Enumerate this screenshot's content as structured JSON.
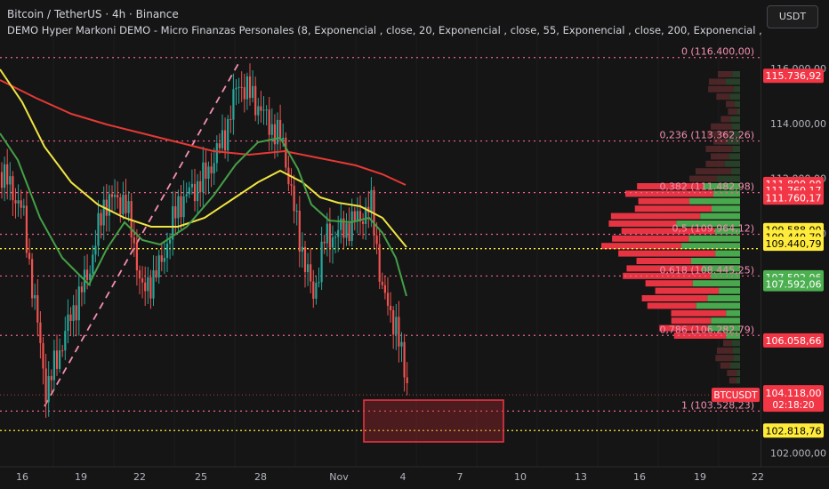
{
  "header": {
    "symbol_line": "Bitcoin / TetherUS · 4h · Binance",
    "indicator_line": "DEMO Hyper Markoni DEMO - Micro Finanzas Personales (8, Exponencial , close, 20, Exponencial , close, 55, Exponencial , close, 200, Exponencial , close,"
  },
  "currency_button": "USDT",
  "x_axis": {
    "labels": [
      "16",
      "19",
      "22",
      "25",
      "28",
      "Nov",
      "4",
      "7",
      "10",
      "13",
      "16",
      "19",
      "22"
    ]
  },
  "y_axis": {
    "labels": [
      "116.000,00",
      "114.000,00",
      "112.000,00",
      "110.000,00",
      "102.000,00"
    ],
    "values": [
      116000,
      114000,
      112000,
      110000,
      102000
    ],
    "range": [
      101500,
      117200
    ]
  },
  "fib_levels": [
    {
      "label": "0 (116.400,00)",
      "value": 116400
    },
    {
      "label": "0,236 (113.362,26)",
      "value": 113362.26
    },
    {
      "label": "0,382 (111.482,98)",
      "value": 111482.98
    },
    {
      "label": "0,5 (109.964,12)",
      "value": 109964.12
    },
    {
      "label": "0,618 (108.445,25)",
      "value": 108445.25
    },
    {
      "label": "0,786 (106.282,79)",
      "value": 106282.79
    },
    {
      "label": "1 (103.528,23)",
      "value": 103528.23
    }
  ],
  "price_tags": [
    {
      "text": "115.736,92",
      "value": 115736.92,
      "bg": "#f23645",
      "fg": "#ffffff"
    },
    {
      "text": "111.800,00",
      "value": 111800,
      "bg": "#f23645",
      "fg": "#ffffff"
    },
    {
      "text": "111.760,17",
      "value": 111560,
      "bg": "#f23645",
      "fg": "#ffffff"
    },
    {
      "text": "111.760,17",
      "value": 111300,
      "bg": "#f23645",
      "fg": "#ffffff"
    },
    {
      "text": "109.588,00",
      "value": 110120,
      "bg": "#ffeb3b",
      "fg": "#000000"
    },
    {
      "text": "109.440,79",
      "value": 109870,
      "bg": "#ffeb3b",
      "fg": "#000000"
    },
    {
      "text": "109.440,79",
      "value": 109620,
      "bg": "#ffeb3b",
      "fg": "#000000"
    },
    {
      "text": "107.592,06",
      "value": 108400,
      "bg": "#4caf50",
      "fg": "#ffffff"
    },
    {
      "text": "107.592,06",
      "value": 108150,
      "bg": "#4caf50",
      "fg": "#ffffff"
    },
    {
      "text": "106.058,66",
      "value": 106100,
      "bg": "#f23645",
      "fg": "#ffffff"
    },
    {
      "text": "102.818,76",
      "value": 102818.76,
      "bg": "#ffeb3b",
      "fg": "#000000"
    }
  ],
  "current_price": {
    "symbol": "BTCUSDT",
    "price": "104.118,00",
    "countdown": "02:18:20",
    "value": 104118
  },
  "colors": {
    "up": "#26a69a",
    "down": "#ef5350",
    "ema_yellow": "#f0e442",
    "ema_green": "#43a047",
    "ema_red": "#e53935",
    "fib": "#f06292",
    "yellow_dot": "#ffeb3b"
  }
}
